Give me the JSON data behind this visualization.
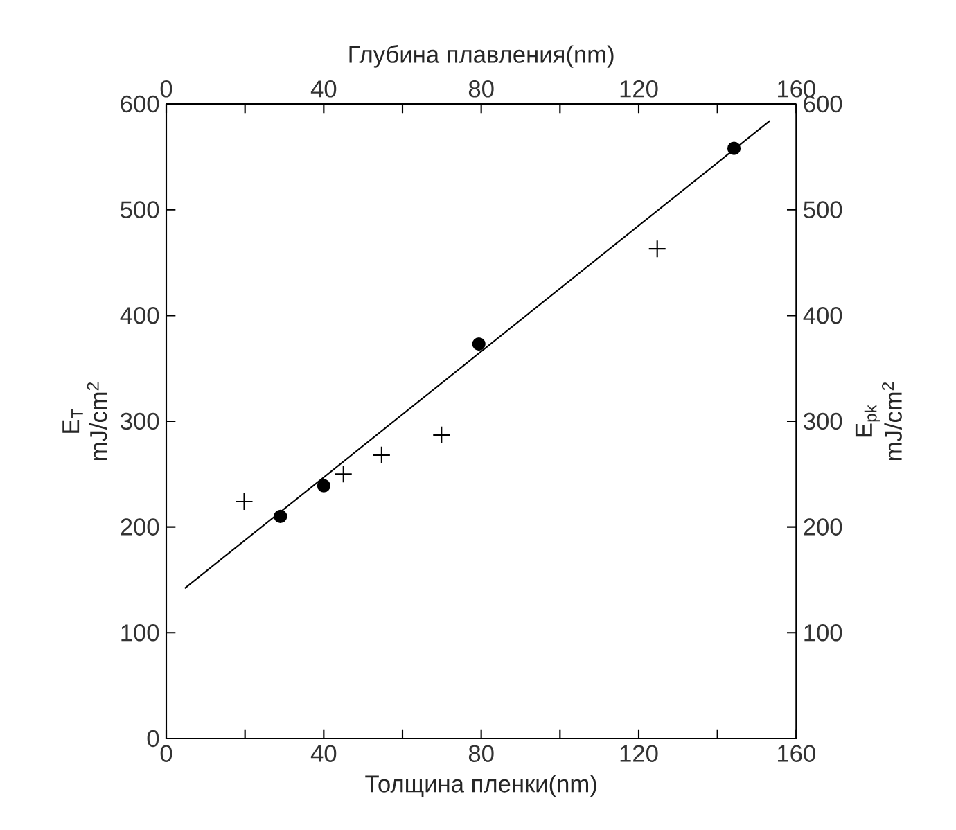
{
  "chart_data": {
    "type": "scatter",
    "xlabel": "Толщина пленки(nm)",
    "x2label": "Глубина плавления(nm)",
    "ylabel": "E$_{T}$ mJ/cm$^{2}$",
    "y2label": "E$_{pk}$ mJ/cm$^{2}$",
    "xlim": [
      0,
      160
    ],
    "x2lim": [
      0,
      160
    ],
    "ylim": [
      0,
      600
    ],
    "y2lim": [
      0,
      600
    ],
    "xticks": [
      0,
      {
        "value": 20,
        "label": null
      },
      40,
      {
        "value": 60,
        "label": null
      },
      80,
      {
        "value": 100,
        "label": null
      },
      120,
      {
        "value": 140,
        "label": null
      },
      160
    ],
    "x2ticks": [
      0,
      {
        "value": 20,
        "label": null
      },
      40,
      {
        "value": 60,
        "label": null
      },
      80,
      {
        "value": 100,
        "label": null
      },
      120,
      {
        "value": 140,
        "label": null
      },
      160
    ],
    "yticks": [
      0,
      100,
      200,
      300,
      400,
      500,
      600
    ],
    "y2ticks": [
      100,
      200,
      300,
      400,
      500,
      600
    ],
    "series": [
      {
        "marker": "circle",
        "color": "#000000",
        "x": [
          29,
          40,
          79.4,
          144.2
        ],
        "values": [
          210,
          239,
          373,
          558
        ]
      },
      {
        "marker": "cross",
        "color": "#000000",
        "x": [
          19.8,
          45,
          54.7,
          69.9,
          124.7
        ],
        "values": [
          224,
          250,
          268,
          287,
          463
        ]
      },
      {
        "type": "line",
        "marker": "none",
        "line_style": "solid",
        "color": "#000000",
        "x": [
          4.7,
          153.3
        ],
        "values": [
          142,
          584
        ]
      }
    ]
  }
}
